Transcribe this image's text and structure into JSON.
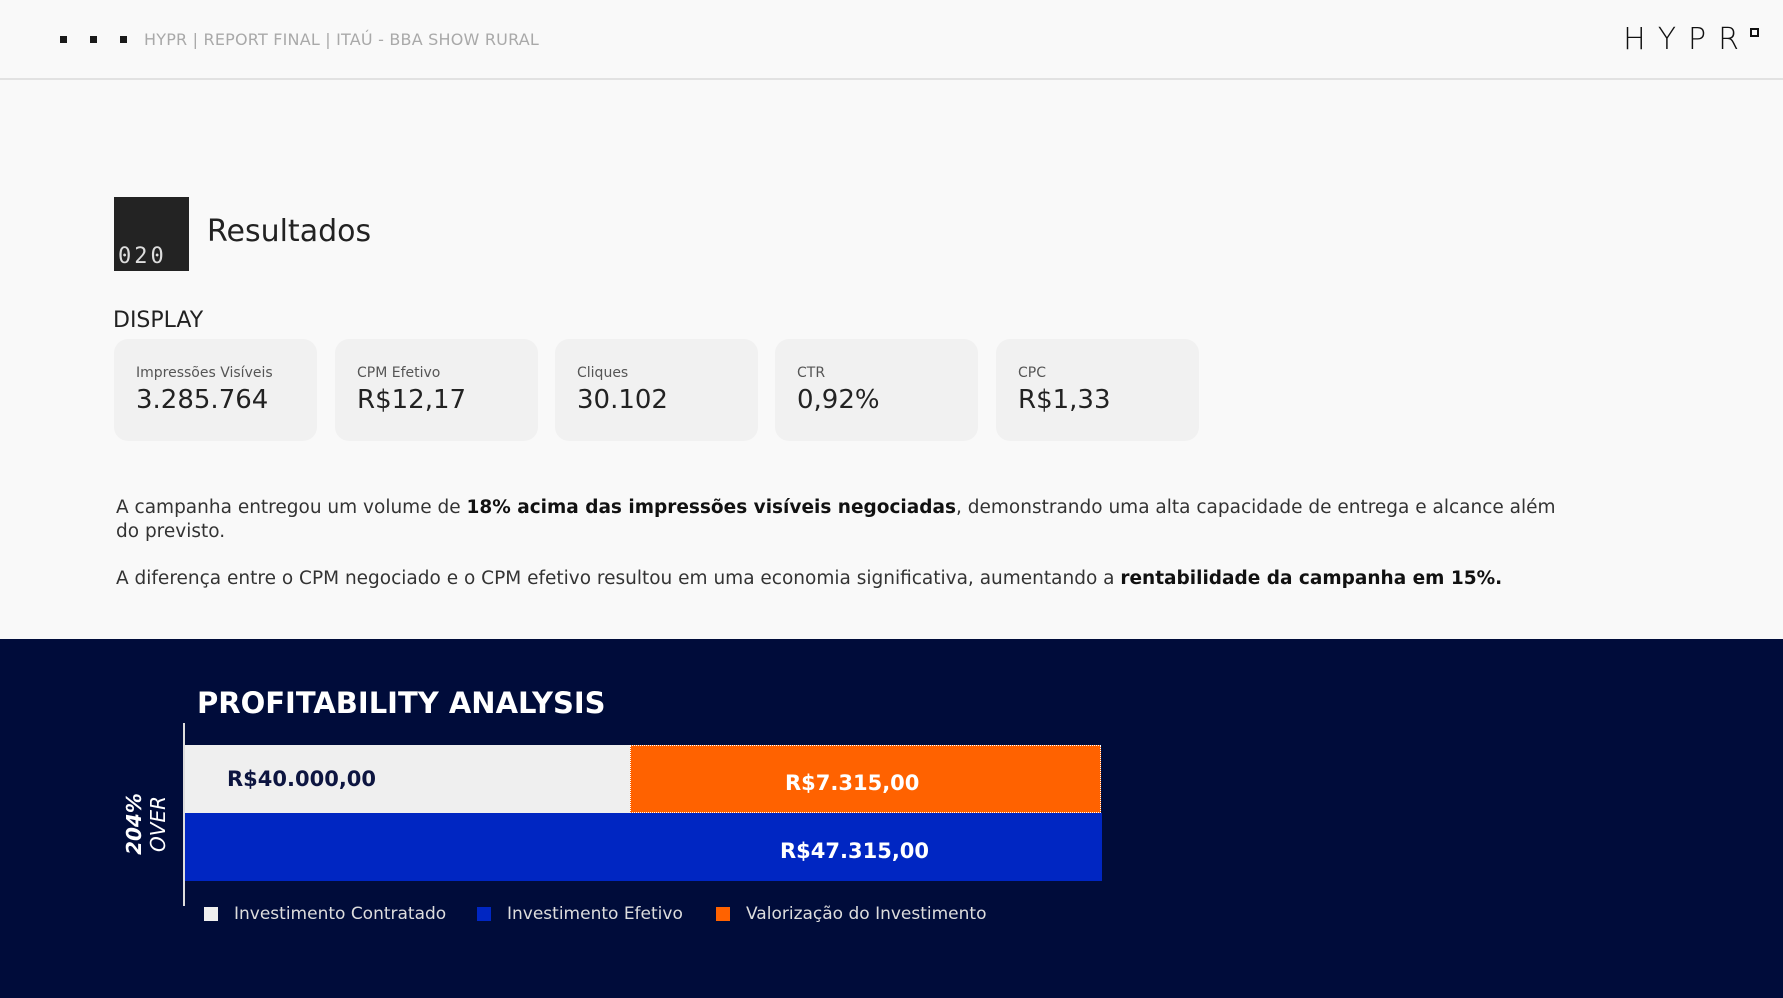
{
  "header": {
    "title": "HYPR | REPORT FINAL | ITAÚ - BBA SHOW RURAL",
    "logo": "HYPR"
  },
  "section": {
    "badge": "020",
    "title": "Resultados",
    "subtitle": "DISPLAY"
  },
  "metrics": [
    {
      "label": "Impressões Visíveis",
      "value": "3.285.764"
    },
    {
      "label": "CPM Efetivo",
      "value": "R$12,17"
    },
    {
      "label": "Cliques",
      "value": "30.102"
    },
    {
      "label": "CTR",
      "value": "0,92%"
    },
    {
      "label": "CPC",
      "value": "R$1,33"
    }
  ],
  "paragraphs": {
    "p1_a": "A campanha entregou um volume de ",
    "p1_b": "18% acima das impressões visíveis negociadas",
    "p1_c": ", demonstrando uma alta capacidade de entrega e alcance além do previsto.",
    "p2_a": "A diferença entre o CPM negociado e o CPM efetivo resultou em uma economia significativa, aumentando a ",
    "p2_b": "rentabilidade da campanha em 15%."
  },
  "profitability": {
    "title": "PROFITABILITY ANALYSIS",
    "side_label_bold": "204%",
    "side_label": " OVER",
    "contratado": "R$40.000,00",
    "valorizacao": "R$7.315,00",
    "efetivo": "R$47.315,00",
    "legend": [
      "Investimento Contratado",
      "Investimento Efetivo",
      "Valorização do Investimento"
    ],
    "colors": {
      "contratado": "#efefef",
      "efetivo": "#0026c2",
      "valorizacao": "#ff6200",
      "background": "#000c3a"
    }
  }
}
